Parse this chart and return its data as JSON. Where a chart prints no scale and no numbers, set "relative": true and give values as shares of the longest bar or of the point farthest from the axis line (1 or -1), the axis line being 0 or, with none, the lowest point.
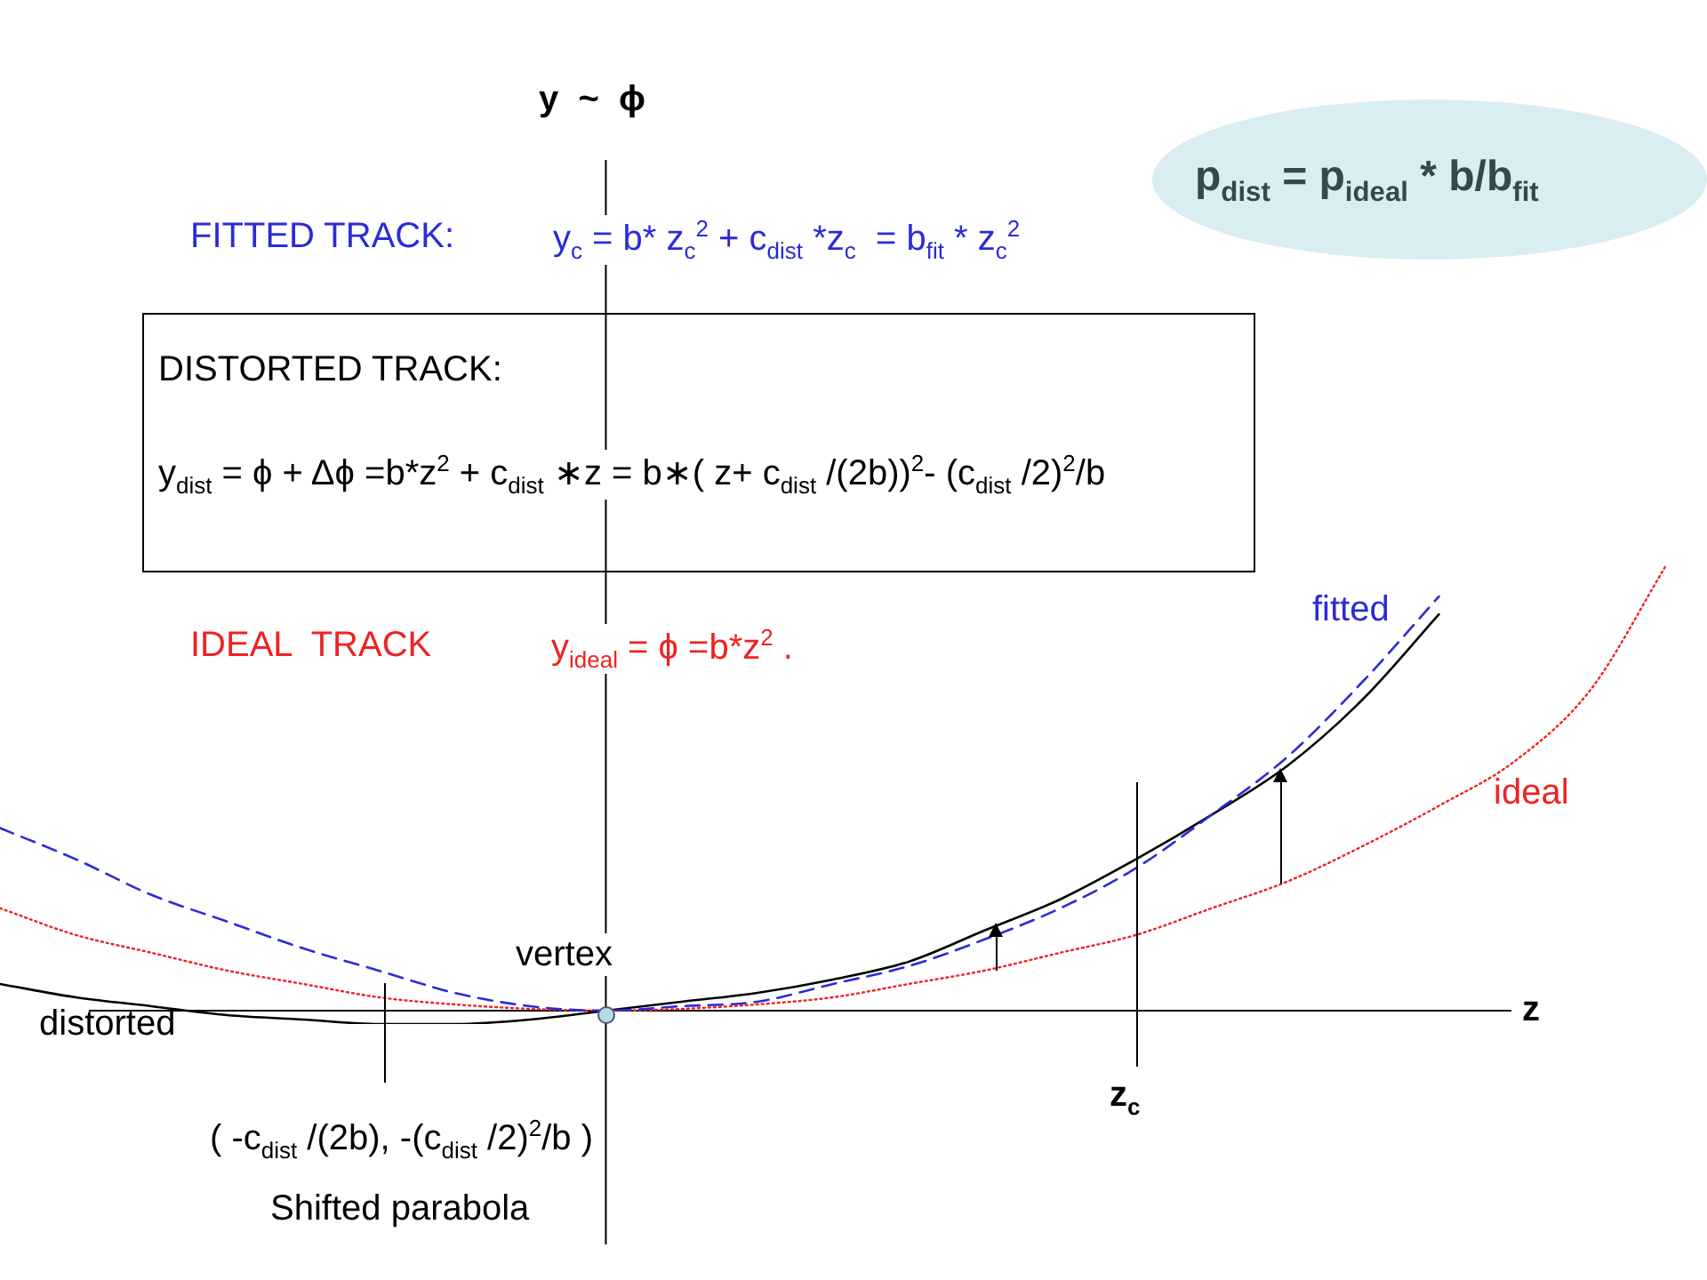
{
  "chart_data": {
    "type": "line",
    "relative": true,
    "legend": false,
    "marker": "none",
    "categories": [
      null,
      null,
      null,
      null,
      null,
      null,
      null,
      null,
      null,
      null,
      null,
      null,
      null,
      null,
      null,
      null,
      null,
      null,
      null,
      null,
      null,
      null,
      null
    ],
    "series": [
      {
        "name": "fitted",
        "color": "#2b2bd6",
        "line_style": "dashed",
        "values": [
          0.41,
          0.34,
          0.26,
          0.2,
          0.14,
          0.09,
          0.04,
          0.01,
          0,
          0.01,
          0.02,
          0.06,
          0.1,
          0.16,
          0.23,
          0.32,
          0.44,
          0.57,
          0.74,
          0.93,
          null,
          null,
          null
        ]
      },
      {
        "name": "ideal",
        "color": "#ee2222",
        "line_style": "dotted",
        "values": [
          0.23,
          0.17,
          0.13,
          0.09,
          0.06,
          0.03,
          0.014,
          0.004,
          0,
          0.004,
          0.014,
          0.03,
          0.06,
          0.09,
          0.13,
          0.17,
          0.23,
          0.29,
          0.37,
          0.46,
          0.56,
          0.72,
          1
        ]
      },
      {
        "name": "distorted",
        "color": "#000000",
        "line_style": "solid",
        "values": [
          0.06,
          0.03,
          0.01,
          -0.01,
          -0.02,
          -0.03,
          -0.03,
          -0.02,
          0,
          0.02,
          0.04,
          0.07,
          0.11,
          0.18,
          0.25,
          0.34,
          0.44,
          0.55,
          0.7,
          0.89,
          null,
          null,
          null
        ]
      }
    ],
    "annotations": [
      "y  ~  ϕ",
      "FITTED TRACK:",
      "y$_{c}$ = b* z$_{c}$$^{2}$ + c$_{dist}$ *z$_{c}$  = b$_{fit}$ * z$_{c}$$^{2}$",
      "DISTORTED TRACK:",
      "y$_{dist}$ = ϕ + Δϕ =b*z$^{2}$ + c$_{dist}$ ∗z = b∗( z+ c$_{dist}$ /(2b))$^{2}$- (c$_{dist}$ /2)$^{2}$/b",
      "IDEAL  TRACK",
      "y$_{ideal}$ = ϕ =b*z$^{2}$ .",
      "p$_{dist}$ = p$_{ideal}$ * b/b$_{fit}$",
      "vertex",
      "z",
      "z$_{c}$",
      "( -c$_{dist}$ /(2b), -(c$_{dist}$ /2)$^{2}$/b )",
      "Shifted parabola"
    ]
  }
}
